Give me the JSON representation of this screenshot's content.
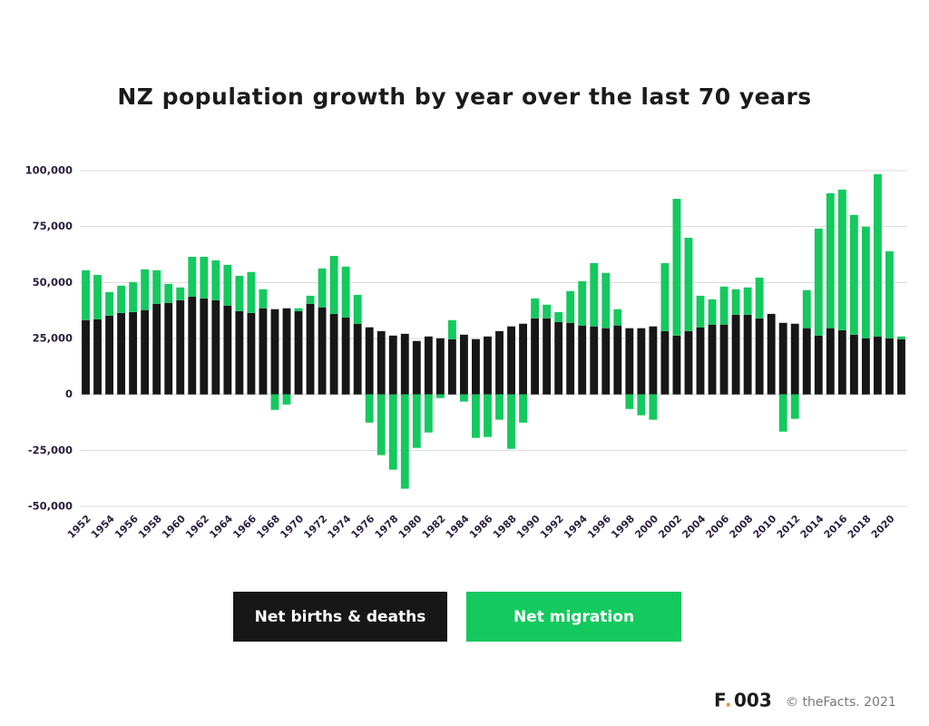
{
  "chart_data": {
    "type": "stacked-bar",
    "title": "NZ population growth by year over the last 70 years",
    "categories": [
      "1952",
      null,
      "1954",
      null,
      "1956",
      null,
      "1958",
      null,
      "1960",
      null,
      "1962",
      null,
      "1964",
      null,
      "1966",
      null,
      "1968",
      null,
      "1970",
      null,
      "1972",
      null,
      "1974",
      null,
      "1976",
      null,
      "1978",
      null,
      "1980",
      null,
      "1982",
      null,
      "1984",
      null,
      "1986",
      null,
      "1988",
      null,
      "1990",
      null,
      "1992",
      null,
      "1994",
      null,
      "1996",
      null,
      "1998",
      null,
      "2000",
      null,
      "2002",
      null,
      "2004",
      null,
      "2006",
      null,
      "2008",
      null,
      "2010",
      null,
      "2012",
      null,
      "2014",
      null,
      "2016",
      null,
      "2018",
      null,
      "2020",
      null
    ],
    "series": [
      {
        "name": "Net births & deaths",
        "color": "#171717",
        "values": [
          33200,
          33600,
          35200,
          36400,
          36800,
          37700,
          40500,
          40900,
          42100,
          43700,
          42900,
          42100,
          39700,
          37200,
          36400,
          38500,
          38100,
          38500,
          37200,
          40500,
          38900,
          36000,
          34400,
          31600,
          30000,
          28300,
          26300,
          27100,
          23900,
          25900,
          25100,
          24700,
          26700,
          24700,
          25900,
          28300,
          30400,
          31600,
          34000,
          34000,
          32400,
          32000,
          30800,
          30400,
          29600,
          30800,
          29600,
          29600,
          30400,
          28300,
          26300,
          28300,
          30000,
          31200,
          31200,
          35600,
          35600,
          34000,
          36000,
          32000,
          31600,
          29600,
          26300,
          29600,
          28700,
          26700,
          25100,
          25900,
          25100,
          24700
        ]
      },
      {
        "name": "Net migration",
        "color": "#14c95e",
        "values": [
          22300,
          19800,
          10500,
          12200,
          13400,
          18200,
          15000,
          8500,
          5700,
          17800,
          18600,
          17800,
          18200,
          15800,
          18300,
          8500,
          -6900,
          -4500,
          1300,
          3600,
          17400,
          25900,
          22700,
          12900,
          -12600,
          -27100,
          -33600,
          -42100,
          -23900,
          -17000,
          -1600,
          8500,
          -3200,
          -19400,
          -19000,
          -11300,
          -24300,
          -12600,
          8900,
          6100,
          4400,
          14200,
          19800,
          28300,
          24700,
          7300,
          -6500,
          -9300,
          -11300,
          30400,
          61100,
          41700,
          14100,
          11300,
          17000,
          11400,
          12200,
          18200,
          0,
          -16600,
          -10900,
          17000,
          47800,
          60300,
          62800,
          53500,
          49800,
          72500,
          38900,
          1200
        ]
      }
    ],
    "ylim": [
      -50000,
      100000
    ],
    "yticks": [
      {
        "value": -50000,
        "label": "-50,000"
      },
      {
        "value": -25000,
        "label": "-25,000"
      },
      0,
      {
        "value": 25000,
        "label": "25,000"
      },
      {
        "value": 50000,
        "label": "50,000"
      },
      {
        "value": 75000,
        "label": "75,000"
      },
      {
        "value": 100000,
        "label": "100,000"
      }
    ],
    "grid": true
  },
  "footer": {
    "brand_letter": "F",
    "brand_dot": ".",
    "brand_number": "003",
    "copyright": "© theFacts. 2021"
  }
}
